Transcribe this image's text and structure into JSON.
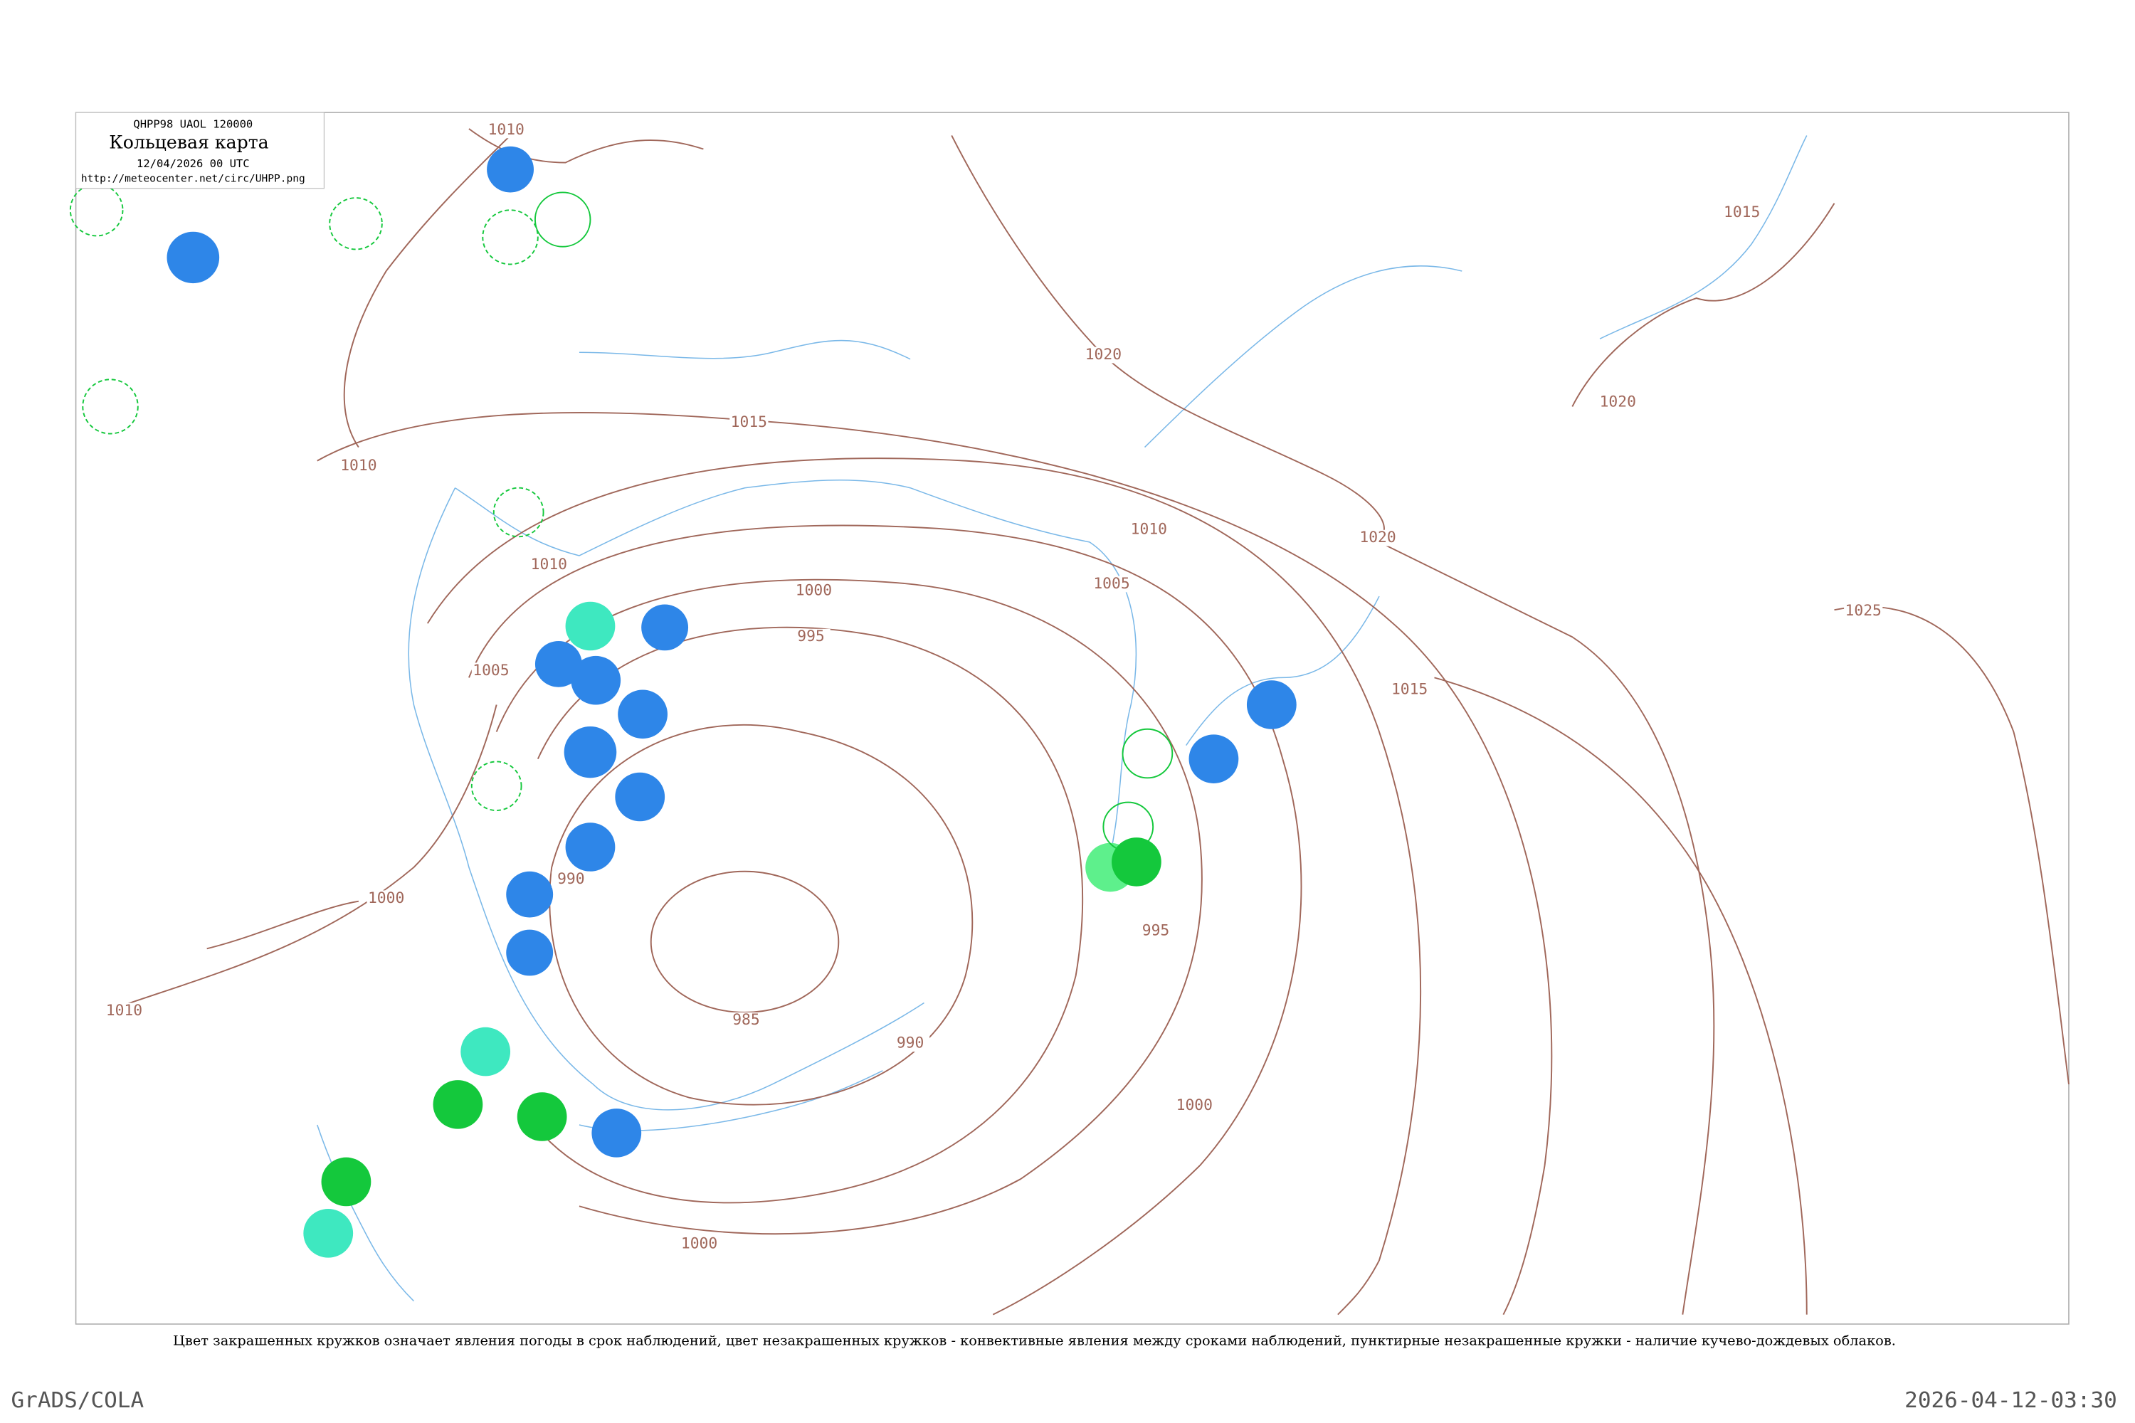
{
  "header": {
    "code": "QHPP98  UAOL  120000",
    "title": "Кольцевая карта",
    "time": "12/04/2026 00 UTC",
    "url": "http://meteocenter.net/circ/UHPP.png"
  },
  "isobar_labels": [
    "1010",
    "1015",
    "1020",
    "1020",
    "1015",
    "1010",
    "1010",
    "1010",
    "1020",
    "1005",
    "1000",
    "995",
    "1005",
    "1015",
    "1025",
    "990",
    "1000",
    "995",
    "985",
    "990",
    "1000",
    "1000",
    "1010"
  ],
  "caption": "Цвет закрашенных кружков означает явления погоды в срок наблюдений, цвет незакрашенных кружков - конвективные явления между сроками наблюдений, пунктирные незакрашенные кружки - наличие кучево-дождевых облаков.",
  "footer": {
    "left": "GrADS/COLA",
    "right": "2026-04-12-03:30"
  }
}
